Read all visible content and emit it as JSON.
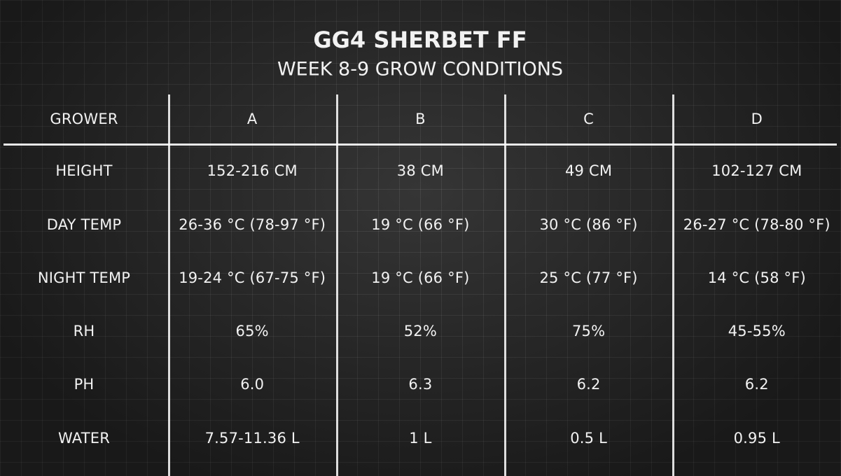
{
  "header": {
    "title": "GG4 SHERBET FF",
    "subtitle": "WEEK 8-9 GROW CONDITIONS"
  },
  "table": {
    "columns": [
      "GROWER",
      "A",
      "B",
      "C",
      "D"
    ],
    "rows": [
      [
        "HEIGHT",
        "152-216 CM",
        "38 CM",
        "49 CM",
        "102-127 CM"
      ],
      [
        "DAY TEMP",
        "26-36 °C (78-97 °F)",
        "19 °C (66 °F)",
        "30 °C (86 °F)",
        "26-27 °C (78-80 °F)"
      ],
      [
        "NIGHT TEMP",
        "19-24 °C (67-75 °F)",
        "19 °C (66 °F)",
        "25 °C (77 °F)",
        "14 °C (58 °F)"
      ],
      [
        "RH",
        "65%",
        "52%",
        "75%",
        "45-55%"
      ],
      [
        "PH",
        "6.0",
        "6.3",
        "6.2",
        "6.2"
      ],
      [
        "WATER",
        "7.57-11.36 L",
        "1 L",
        "0.5 L",
        "0.95 L"
      ]
    ]
  }
}
